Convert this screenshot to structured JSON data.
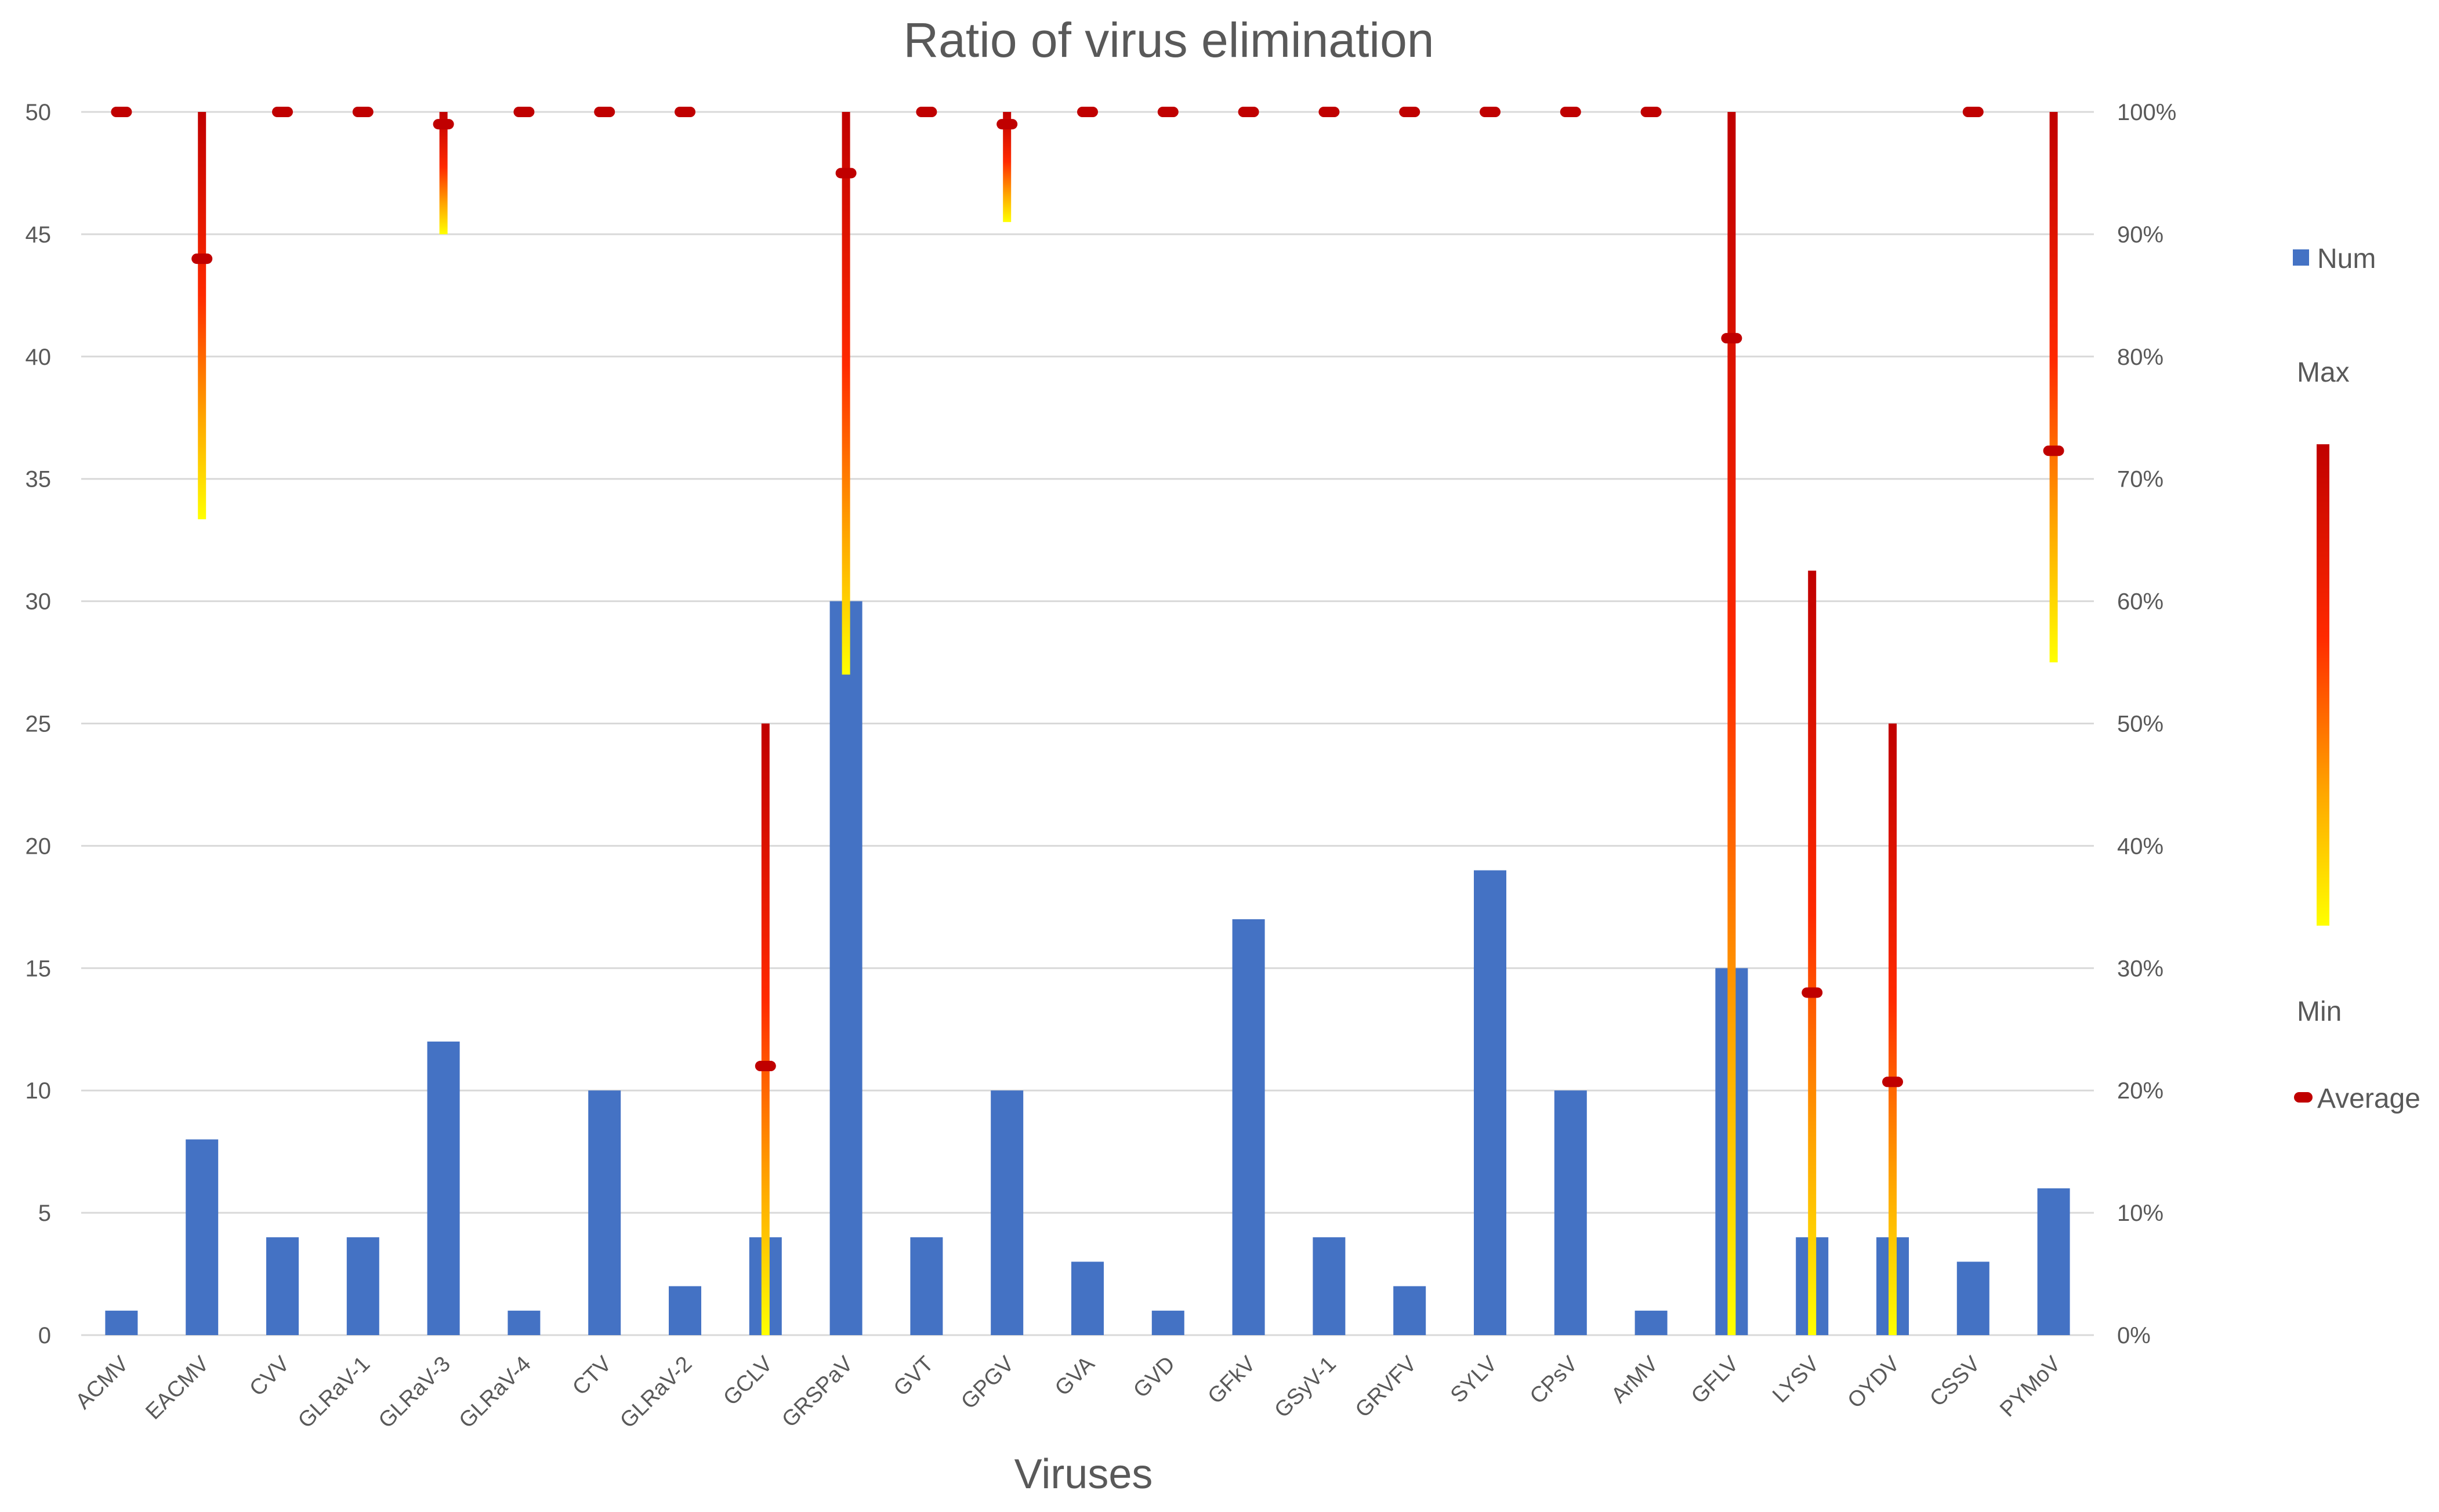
{
  "chart_data": {
    "type": "bar",
    "title": "Ratio of virus elimination",
    "xlabel": "Viruses",
    "ylabel": "",
    "ylim": [
      0,
      50
    ],
    "y2lim": [
      0,
      100
    ],
    "y_ticks": [
      "0",
      "5",
      "10",
      "15",
      "20",
      "25",
      "30",
      "35",
      "40",
      "45",
      "50"
    ],
    "y2_ticks": [
      "0%",
      "10%",
      "20%",
      "30%",
      "40%",
      "50%",
      "60%",
      "70%",
      "80%",
      "90%",
      "100%"
    ],
    "grid": true,
    "legend_position": "right",
    "categories": [
      "ACMV",
      "EACMV",
      "CVV",
      "GLRaV-1",
      "GLRaV-3",
      "GLRaV-4",
      "CTV",
      "GLRaV-2",
      "GCLV",
      "GRSPaV",
      "GVT",
      "GPGV",
      "GVA",
      "GVD",
      "GFkV",
      "GSyV-1",
      "GRVFV",
      "SYLV",
      "CPsV",
      "ArMV",
      "GFLV",
      "LYSV",
      "OYDV",
      "CSSV",
      "PYMoV"
    ],
    "series": [
      {
        "name": "Num",
        "axis": "left",
        "kind": "bar",
        "color": "#4472c4",
        "values": [
          1,
          8,
          4,
          4,
          12,
          1,
          10,
          2,
          4,
          30,
          4,
          10,
          3,
          1,
          17,
          4,
          2,
          19,
          10,
          1,
          15,
          4,
          4,
          3,
          6
        ]
      },
      {
        "name": "Max",
        "axis": "right",
        "kind": "range-high",
        "values": [
          100,
          100,
          100,
          100,
          100,
          100,
          100,
          100,
          50,
          100,
          100,
          100,
          100,
          100,
          100,
          100,
          100,
          100,
          100,
          100,
          100,
          62.5,
          50,
          100,
          100
        ]
      },
      {
        "name": "Min",
        "axis": "right",
        "kind": "range-low",
        "values": [
          100,
          66.7,
          100,
          100,
          90,
          100,
          100,
          100,
          0,
          54,
          100,
          91,
          100,
          100,
          100,
          100,
          100,
          100,
          100,
          100,
          0,
          0,
          0,
          100,
          55
        ]
      },
      {
        "name": "Average",
        "axis": "right",
        "kind": "marker",
        "color": "#c00000",
        "values": [
          100,
          88,
          100,
          100,
          99,
          100,
          100,
          100,
          22,
          95,
          100,
          99,
          100,
          100,
          100,
          100,
          100,
          100,
          100,
          100,
          81.5,
          28,
          20.7,
          100,
          72.3
        ]
      }
    ],
    "legend": {
      "num_label": "Num",
      "max_label": "Max",
      "min_label": "Min",
      "average_label": "Average"
    },
    "colors": {
      "bar": "#4472c4",
      "average": "#c00000",
      "range_top": "#c00000",
      "range_mid": "#ff2a00",
      "range_low": "#ffa500",
      "range_bottom": "#ffff00"
    }
  }
}
